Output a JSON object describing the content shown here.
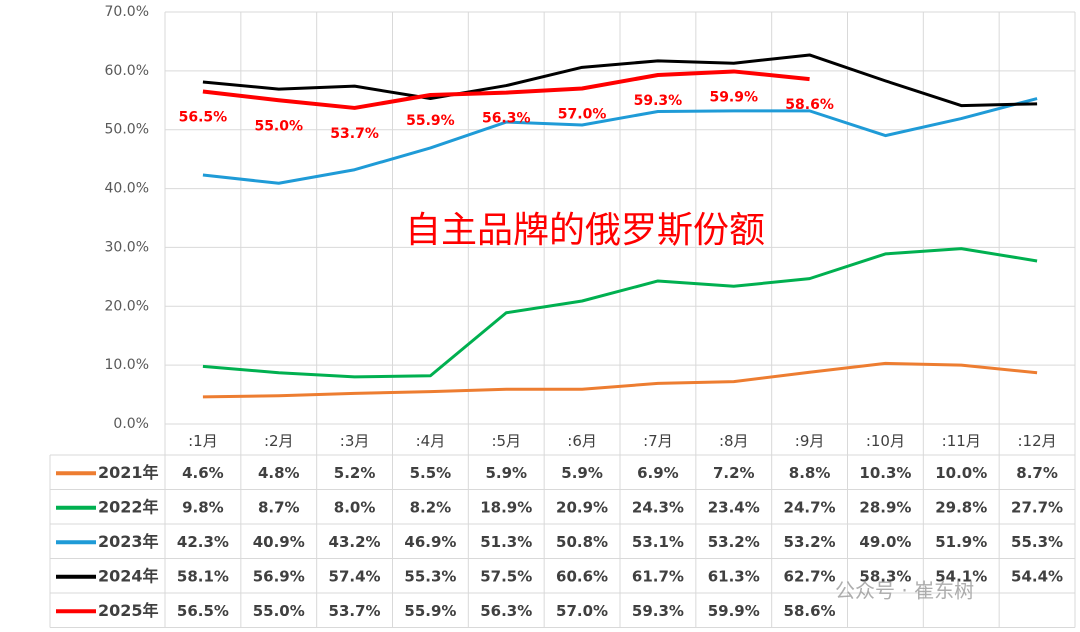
{
  "chart_data": {
    "type": "line",
    "annotation": "自主品牌的俄罗斯份额",
    "watermark": "公众号 · 崔东树",
    "categories": [
      ":1月",
      ":2月",
      ":3月",
      ":4月",
      ":5月",
      ":6月",
      ":7月",
      ":8月",
      ":9月",
      ":10月",
      ":11月",
      ":12月"
    ],
    "series": [
      {
        "name": "2021年",
        "color": "#ed7d31",
        "values": [
          4.6,
          4.8,
          5.2,
          5.5,
          5.9,
          5.9,
          6.9,
          7.2,
          8.8,
          10.3,
          10.0,
          8.7
        ],
        "value_labels": [
          "4.6%",
          "4.8%",
          "5.2%",
          "5.5%",
          "5.9%",
          "5.9%",
          "6.9%",
          "7.2%",
          "8.8%",
          "10.3%",
          "10.0%",
          "8.7%"
        ]
      },
      {
        "name": "2022年",
        "color": "#00b050",
        "values": [
          9.8,
          8.7,
          8.0,
          8.2,
          18.9,
          20.9,
          24.3,
          23.4,
          24.7,
          28.9,
          29.8,
          27.7
        ],
        "value_labels": [
          "9.8%",
          "8.7%",
          "8.0%",
          "8.2%",
          "18.9%",
          "20.9%",
          "24.3%",
          "23.4%",
          "24.7%",
          "28.9%",
          "29.8%",
          "27.7%"
        ]
      },
      {
        "name": "2023年",
        "color": "#1f9bd7",
        "values": [
          42.3,
          40.9,
          43.2,
          46.9,
          51.3,
          50.8,
          53.1,
          53.2,
          53.2,
          49.0,
          51.9,
          55.3
        ],
        "value_labels": [
          "42.3%",
          "40.9%",
          "43.2%",
          "46.9%",
          "51.3%",
          "50.8%",
          "53.1%",
          "53.2%",
          "53.2%",
          "49.0%",
          "51.9%",
          "55.3%"
        ]
      },
      {
        "name": "2024年",
        "color": "#000000",
        "values": [
          58.1,
          56.9,
          57.4,
          55.3,
          57.5,
          60.6,
          61.7,
          61.3,
          62.7,
          58.3,
          54.1,
          54.4
        ],
        "value_labels": [
          "58.1%",
          "56.9%",
          "57.4%",
          "55.3%",
          "57.5%",
          "60.6%",
          "61.7%",
          "61.3%",
          "62.7%",
          "58.3%",
          "54.1%",
          "54.4%"
        ]
      },
      {
        "name": "2025年",
        "color": "#ff0000",
        "values": [
          56.5,
          55.0,
          53.7,
          55.9,
          56.3,
          57.0,
          59.3,
          59.9,
          58.6,
          null,
          null,
          null
        ],
        "value_labels": [
          "56.5%",
          "55.0%",
          "53.7%",
          "55.9%",
          "56.3%",
          "57.0%",
          "59.3%",
          "59.9%",
          "58.6%",
          null,
          null,
          null
        ],
        "show_labels": true
      }
    ],
    "ylim": [
      0,
      70
    ],
    "yticks": [
      {
        "value": 0,
        "label": "0.0%"
      },
      {
        "value": 10,
        "label": "10.0%"
      },
      {
        "value": 20,
        "label": "20.0%"
      },
      {
        "value": 30,
        "label": "30.0%"
      },
      {
        "value": 40,
        "label": "40.0%"
      },
      {
        "value": 50,
        "label": "50.0%"
      },
      {
        "value": 60,
        "label": "60.0%"
      },
      {
        "value": 70,
        "label": "70.0%"
      }
    ],
    "grid": true
  }
}
